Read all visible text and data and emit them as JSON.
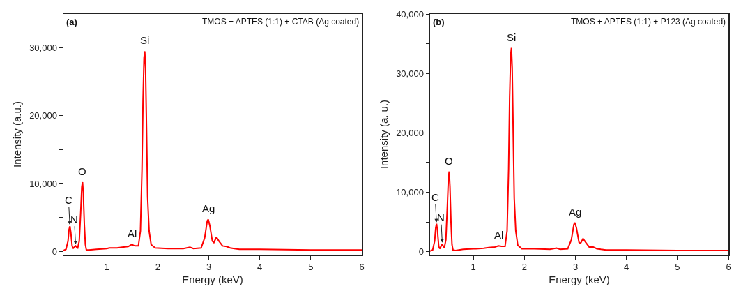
{
  "chart_data": [
    {
      "type": "line",
      "title": "(a)",
      "subtitle": "TMOS + APTES (1:1) + CTAB (Ag coated)",
      "xlabel": "Energy (keV)",
      "ylabel": "Intensity (a.u.)",
      "xlim": [
        0.15,
        6
      ],
      "xticks": [
        1,
        2,
        3,
        4,
        5,
        6
      ],
      "ylim": [
        -500,
        35000
      ],
      "yticks": [
        {
          "value": 0,
          "label": "0"
        },
        {
          "value": 5000,
          "label": null
        },
        {
          "value": 10000,
          "label": "10,000"
        },
        {
          "value": 15000,
          "label": null
        },
        {
          "value": 20000,
          "label": "20,000"
        },
        {
          "value": 25000,
          "label": null
        },
        {
          "value": 30000,
          "label": "30,000"
        }
      ],
      "grid": false,
      "marker": "none",
      "line_style": "solid",
      "annotations": [
        {
          "text": "C",
          "x": 0.277,
          "y": 3700
        },
        {
          "text": "N",
          "x": 0.39,
          "y": 800
        },
        {
          "text": "O",
          "x": 0.525,
          "y": 10200
        },
        {
          "text": "Al",
          "x": 1.49,
          "y": 1000
        },
        {
          "text": "Si",
          "x": 1.745,
          "y": 29500
        },
        {
          "text": "Ag",
          "x": 2.99,
          "y": 4700
        }
      ],
      "series": [
        {
          "color": "#ff0000",
          "x": [
            0.15,
            0.2,
            0.24,
            0.26,
            0.277,
            0.295,
            0.32,
            0.34,
            0.37,
            0.39,
            0.41,
            0.43,
            0.46,
            0.49,
            0.51,
            0.525,
            0.54,
            0.56,
            0.58,
            0.6,
            0.65,
            0.8,
            1.0,
            1.05,
            1.2,
            1.3,
            1.42,
            1.49,
            1.55,
            1.62,
            1.66,
            1.69,
            1.71,
            1.73,
            1.745,
            1.76,
            1.78,
            1.8,
            1.83,
            1.87,
            1.95,
            2.2,
            2.5,
            2.63,
            2.7,
            2.85,
            2.92,
            2.97,
            2.99,
            3.02,
            3.07,
            3.1,
            3.15,
            3.2,
            3.27,
            3.35,
            3.42,
            3.5,
            3.6,
            4.0,
            5.0,
            6.0
          ],
          "values": [
            100,
            300,
            1500,
            3200,
            3700,
            2800,
            800,
            400,
            700,
            800,
            600,
            500,
            1500,
            6000,
            9500,
            10200,
            8500,
            4000,
            1000,
            200,
            200,
            300,
            400,
            500,
            500,
            600,
            700,
            1000,
            800,
            800,
            3000,
            12000,
            22000,
            28500,
            29500,
            27000,
            18000,
            8000,
            3000,
            1000,
            500,
            400,
            400,
            600,
            400,
            500,
            2000,
            4500,
            4700,
            3800,
            1500,
            1300,
            2100,
            1500,
            800,
            700,
            500,
            400,
            300,
            300,
            200,
            200
          ]
        }
      ]
    },
    {
      "type": "line",
      "title": "(b)",
      "subtitle": "TMOS + APTES (1:1) + P123 (Ag coated)",
      "xlabel": "Energy (keV)",
      "ylabel": "Intensity (a. u.)",
      "xlim": [
        0.15,
        6
      ],
      "xticks": [
        1,
        2,
        3,
        4,
        5,
        6
      ],
      "ylim": [
        -500,
        40000
      ],
      "yticks": [
        {
          "value": 0,
          "label": "0"
        },
        {
          "value": 5000,
          "label": null
        },
        {
          "value": 10000,
          "label": "10,000"
        },
        {
          "value": 15000,
          "label": null
        },
        {
          "value": 20000,
          "label": "20,000"
        },
        {
          "value": 25000,
          "label": null
        },
        {
          "value": 30000,
          "label": "30,000"
        },
        {
          "value": 35000,
          "label": null
        },
        {
          "value": 40000,
          "label": "40,000"
        }
      ],
      "grid": false,
      "marker": "none",
      "line_style": "solid",
      "annotations": [
        {
          "text": "C",
          "x": 0.277,
          "y": 4700
        },
        {
          "text": "N",
          "x": 0.39,
          "y": 1300
        },
        {
          "text": "O",
          "x": 0.525,
          "y": 13500
        },
        {
          "text": "Al",
          "x": 1.49,
          "y": 1000
        },
        {
          "text": "Si",
          "x": 1.745,
          "y": 34300
        },
        {
          "text": "Ag",
          "x": 2.99,
          "y": 4900
        }
      ],
      "series": [
        {
          "color": "#ff0000",
          "x": [
            0.15,
            0.2,
            0.24,
            0.26,
            0.277,
            0.295,
            0.32,
            0.34,
            0.37,
            0.39,
            0.41,
            0.43,
            0.46,
            0.49,
            0.51,
            0.525,
            0.54,
            0.56,
            0.58,
            0.6,
            0.65,
            0.8,
            1.0,
            1.05,
            1.2,
            1.3,
            1.42,
            1.49,
            1.55,
            1.62,
            1.66,
            1.69,
            1.71,
            1.73,
            1.745,
            1.76,
            1.78,
            1.8,
            1.83,
            1.87,
            1.95,
            2.2,
            2.5,
            2.63,
            2.7,
            2.85,
            2.92,
            2.97,
            2.99,
            3.02,
            3.07,
            3.1,
            3.15,
            3.2,
            3.27,
            3.35,
            3.42,
            3.5,
            3.6,
            4.0,
            5.0,
            6.0
          ],
          "values": [
            100,
            300,
            1800,
            4000,
            4700,
            3500,
            900,
            500,
            1000,
            1300,
            900,
            700,
            2000,
            8000,
            12500,
            13500,
            11000,
            5000,
            1200,
            300,
            200,
            400,
            500,
            500,
            600,
            700,
            800,
            1000,
            900,
            900,
            3500,
            14000,
            26000,
            33000,
            34300,
            31000,
            20000,
            9000,
            3500,
            1100,
            500,
            500,
            400,
            600,
            400,
            500,
            2000,
            4600,
            4900,
            4000,
            1600,
            1400,
            2200,
            1600,
            800,
            800,
            500,
            400,
            300,
            300,
            200,
            200
          ]
        }
      ]
    }
  ]
}
